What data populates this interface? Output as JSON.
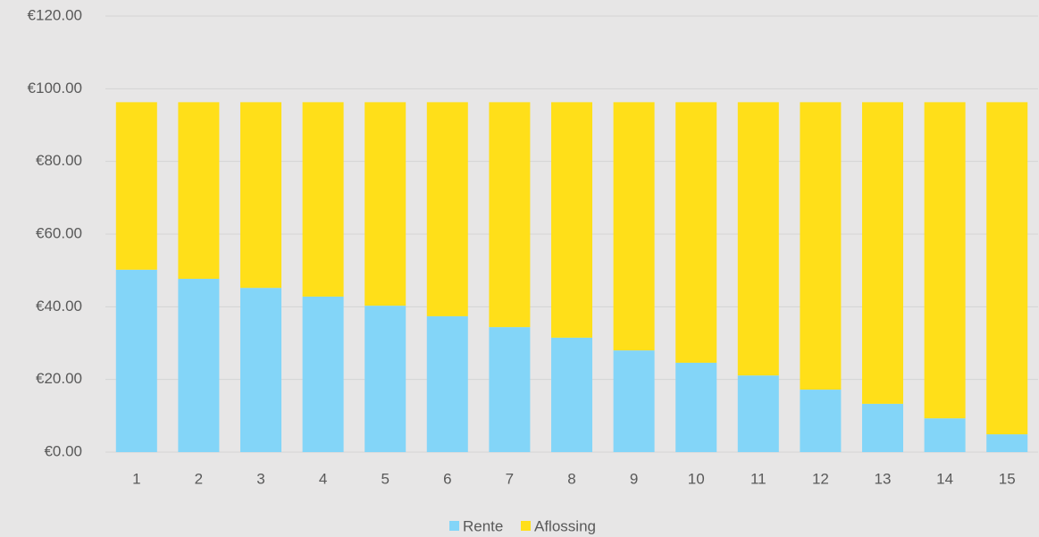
{
  "chart_data": {
    "type": "stacked_bar",
    "categories": [
      "1",
      "2",
      "3",
      "4",
      "5",
      "6",
      "7",
      "8",
      "9",
      "10",
      "11",
      "12",
      "13",
      "14",
      "15"
    ],
    "series": [
      {
        "name": "Rente",
        "color": "#83d5f8",
        "values": [
          50.2,
          47.7,
          45.2,
          42.8,
          40.3,
          37.4,
          34.4,
          31.5,
          28.0,
          24.6,
          21.1,
          17.2,
          13.3,
          9.3,
          4.9
        ]
      },
      {
        "name": "Aflossing",
        "color": "#ffdf19",
        "values": [
          46.1,
          48.6,
          51.1,
          53.5,
          56.0,
          58.9,
          61.9,
          64.8,
          68.3,
          71.7,
          75.2,
          79.1,
          83.0,
          87.0,
          91.4
        ]
      }
    ],
    "ylim": [
      0,
      120
    ],
    "yticks": [
      {
        "value": 0,
        "label": "€0.00"
      },
      {
        "value": 20,
        "label": "€20.00"
      },
      {
        "value": 40,
        "label": "€40.00"
      },
      {
        "value": 60,
        "label": "€60.00"
      },
      {
        "value": 80,
        "label": "€80.00"
      },
      {
        "value": 100,
        "label": "€100.00"
      },
      {
        "value": 120,
        "label": "€120.00"
      }
    ],
    "grid": true,
    "legend": "bottom"
  }
}
